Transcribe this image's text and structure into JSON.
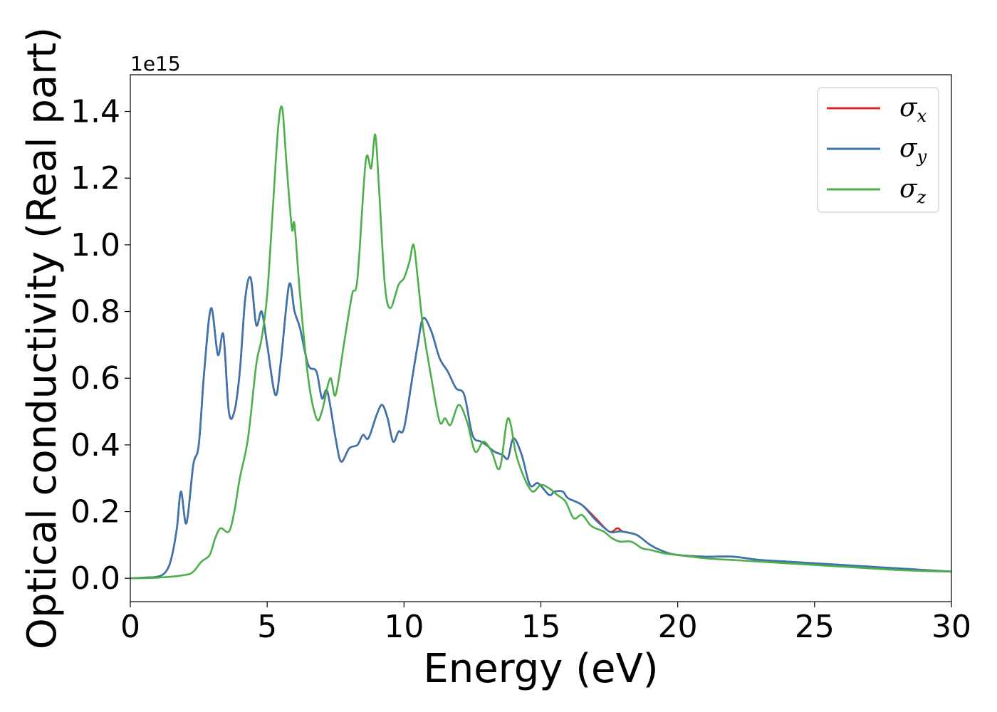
{
  "chart_data": {
    "type": "line",
    "xlabel": "Energy (eV)",
    "ylabel": "Optical conductivity (Real part)",
    "y_offset_label": "1e15",
    "xlim": [
      0,
      30
    ],
    "ylim": [
      -0.07,
      1.51
    ],
    "xticks": [
      0,
      5,
      10,
      15,
      20,
      25,
      30
    ],
    "yticks": [
      0.0,
      0.2,
      0.4,
      0.6,
      0.8,
      1.0,
      1.2,
      1.4
    ],
    "grid": false,
    "legend_position": "top-right",
    "series": [
      {
        "name": "σx",
        "symbol": "σ",
        "subscript": "x",
        "color": "#d62728",
        "x": [
          0,
          0.5,
          1.0,
          1.3,
          1.5,
          1.7,
          1.85,
          2.05,
          2.3,
          2.5,
          2.7,
          2.95,
          3.2,
          3.4,
          3.6,
          3.8,
          4.0,
          4.2,
          4.4,
          4.6,
          4.8,
          5.0,
          5.3,
          5.5,
          5.8,
          6.0,
          6.2,
          6.5,
          6.8,
          7.0,
          7.2,
          7.5,
          7.7,
          8.0,
          8.3,
          8.5,
          8.7,
          9.0,
          9.2,
          9.4,
          9.6,
          9.8,
          10.0,
          10.3,
          10.5,
          10.7,
          11.0,
          11.3,
          11.6,
          11.9,
          12.2,
          12.5,
          12.8,
          13.0,
          13.3,
          13.6,
          13.8,
          14.0,
          14.3,
          14.6,
          14.9,
          15.3,
          15.5,
          15.8,
          16.0,
          16.5,
          17.0,
          17.5,
          17.8,
          18.0,
          18.5,
          19.0,
          19.5,
          20.0,
          21.0,
          22.0,
          23.0,
          24.0,
          25.0,
          26.0,
          27.0,
          28.0,
          29.0,
          30.0
        ],
        "y": [
          0.0,
          0.002,
          0.005,
          0.02,
          0.06,
          0.15,
          0.26,
          0.165,
          0.34,
          0.4,
          0.62,
          0.81,
          0.67,
          0.73,
          0.5,
          0.5,
          0.62,
          0.84,
          0.9,
          0.76,
          0.8,
          0.7,
          0.55,
          0.65,
          0.88,
          0.8,
          0.75,
          0.64,
          0.62,
          0.54,
          0.56,
          0.42,
          0.35,
          0.39,
          0.4,
          0.43,
          0.42,
          0.49,
          0.52,
          0.48,
          0.41,
          0.44,
          0.45,
          0.6,
          0.7,
          0.78,
          0.74,
          0.66,
          0.62,
          0.57,
          0.55,
          0.43,
          0.41,
          0.4,
          0.38,
          0.37,
          0.36,
          0.42,
          0.37,
          0.28,
          0.285,
          0.25,
          0.26,
          0.26,
          0.24,
          0.22,
          0.18,
          0.14,
          0.15,
          0.14,
          0.13,
          0.1,
          0.08,
          0.07,
          0.065,
          0.065,
          0.055,
          0.05,
          0.045,
          0.04,
          0.035,
          0.03,
          0.025,
          0.02
        ]
      },
      {
        "name": "σy",
        "symbol": "σ",
        "subscript": "y",
        "color": "#3a75b0",
        "x": [
          0,
          0.5,
          1.0,
          1.3,
          1.5,
          1.7,
          1.85,
          2.05,
          2.3,
          2.5,
          2.7,
          2.95,
          3.2,
          3.4,
          3.6,
          3.8,
          4.0,
          4.2,
          4.4,
          4.6,
          4.8,
          5.0,
          5.3,
          5.5,
          5.8,
          6.0,
          6.2,
          6.5,
          6.8,
          7.0,
          7.2,
          7.5,
          7.7,
          8.0,
          8.3,
          8.5,
          8.7,
          9.0,
          9.2,
          9.4,
          9.6,
          9.8,
          10.0,
          10.3,
          10.5,
          10.7,
          11.0,
          11.3,
          11.6,
          11.9,
          12.2,
          12.5,
          12.8,
          13.0,
          13.3,
          13.6,
          13.8,
          14.0,
          14.3,
          14.6,
          14.9,
          15.3,
          15.5,
          15.8,
          16.0,
          16.5,
          17.0,
          17.5,
          17.8,
          18.0,
          18.5,
          19.0,
          19.5,
          20.0,
          21.0,
          22.0,
          23.0,
          24.0,
          25.0,
          26.0,
          27.0,
          28.0,
          29.0,
          30.0
        ],
        "y": [
          0.0,
          0.002,
          0.005,
          0.02,
          0.06,
          0.15,
          0.26,
          0.165,
          0.34,
          0.4,
          0.62,
          0.81,
          0.67,
          0.73,
          0.5,
          0.5,
          0.62,
          0.84,
          0.9,
          0.76,
          0.8,
          0.7,
          0.55,
          0.65,
          0.88,
          0.8,
          0.75,
          0.64,
          0.62,
          0.54,
          0.56,
          0.42,
          0.35,
          0.39,
          0.4,
          0.43,
          0.42,
          0.49,
          0.52,
          0.48,
          0.41,
          0.44,
          0.45,
          0.6,
          0.7,
          0.78,
          0.74,
          0.66,
          0.62,
          0.57,
          0.55,
          0.43,
          0.41,
          0.4,
          0.38,
          0.37,
          0.36,
          0.42,
          0.37,
          0.28,
          0.285,
          0.25,
          0.26,
          0.26,
          0.24,
          0.22,
          0.175,
          0.14,
          0.14,
          0.14,
          0.13,
          0.1,
          0.08,
          0.07,
          0.065,
          0.065,
          0.055,
          0.05,
          0.045,
          0.04,
          0.035,
          0.03,
          0.025,
          0.02
        ]
      },
      {
        "name": "σz",
        "symbol": "σ",
        "subscript": "z",
        "color": "#4daf4a",
        "x": [
          0,
          1.0,
          2.0,
          2.3,
          2.6,
          2.9,
          3.1,
          3.3,
          3.6,
          3.8,
          4.0,
          4.3,
          4.6,
          4.8,
          5.0,
          5.2,
          5.4,
          5.55,
          5.7,
          5.9,
          6.0,
          6.2,
          6.5,
          6.8,
          7.0,
          7.3,
          7.5,
          7.8,
          8.1,
          8.3,
          8.6,
          8.8,
          8.95,
          9.1,
          9.3,
          9.5,
          9.8,
          10.0,
          10.2,
          10.35,
          10.5,
          10.7,
          11.0,
          11.3,
          11.5,
          11.7,
          12.0,
          12.3,
          12.6,
          12.9,
          13.2,
          13.5,
          13.8,
          14.1,
          14.4,
          14.7,
          15.0,
          15.3,
          15.6,
          15.9,
          16.2,
          16.5,
          16.8,
          17.0,
          17.3,
          17.6,
          17.9,
          18.3,
          18.7,
          19.0,
          19.5,
          20.0,
          21.0,
          22.0,
          23.0,
          24.0,
          25.0,
          26.0,
          27.0,
          28.0,
          29.0,
          30.0
        ],
        "y": [
          0.0,
          0.002,
          0.01,
          0.02,
          0.05,
          0.07,
          0.12,
          0.15,
          0.14,
          0.2,
          0.3,
          0.42,
          0.64,
          0.72,
          0.85,
          1.1,
          1.35,
          1.41,
          1.25,
          1.05,
          1.06,
          0.85,
          0.6,
          0.48,
          0.5,
          0.6,
          0.55,
          0.7,
          0.85,
          0.9,
          1.25,
          1.23,
          1.33,
          1.15,
          0.88,
          0.81,
          0.88,
          0.9,
          0.95,
          1.0,
          0.9,
          0.75,
          0.6,
          0.47,
          0.48,
          0.46,
          0.52,
          0.47,
          0.38,
          0.41,
          0.38,
          0.33,
          0.48,
          0.37,
          0.3,
          0.26,
          0.28,
          0.27,
          0.25,
          0.23,
          0.18,
          0.19,
          0.16,
          0.15,
          0.14,
          0.12,
          0.11,
          0.11,
          0.09,
          0.085,
          0.075,
          0.07,
          0.06,
          0.055,
          0.05,
          0.045,
          0.04,
          0.035,
          0.03,
          0.025,
          0.022,
          0.02
        ]
      }
    ]
  }
}
